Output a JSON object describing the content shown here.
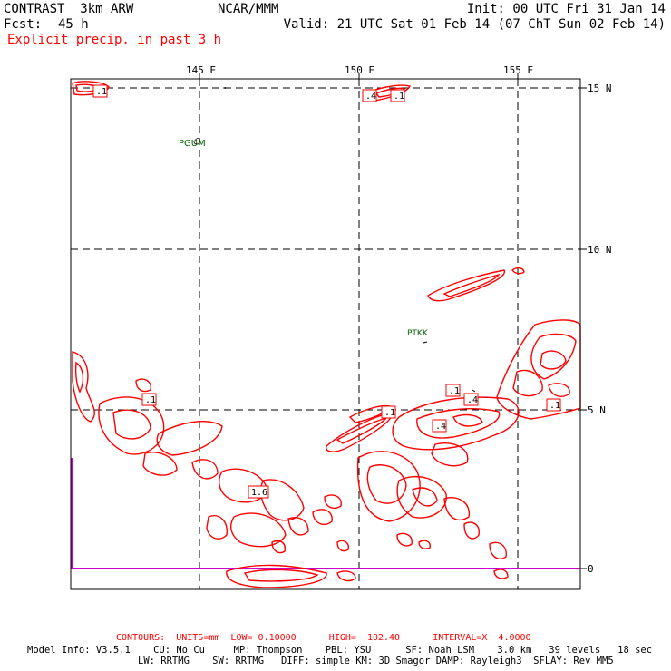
{
  "header": {
    "model": "CONTRAST  3km ARW",
    "org": "NCAR/MMM",
    "init": "Init: 00 UTC Fri 31 Jan 14",
    "fcst_label": "Fcst:",
    "fcst_value": "45 h",
    "valid": "Valid: 21 UTC Sat 01 Feb 14 (07 ChT Sun 02 Feb 14)",
    "field": "Explicit precip. in past 3 h"
  },
  "lon_labels": [
    "145 E",
    "150 E",
    "155 E"
  ],
  "lat_labels": [
    "15 N",
    "10 N",
    "5 N",
    "0"
  ],
  "stations": [
    "PGUM",
    "PTKK"
  ],
  "contour_labels": [
    ".1",
    ".4",
    ".1",
    ".1",
    ".1",
    ".4",
    ".1",
    ".4",
    ".1",
    "1.6"
  ],
  "footer": {
    "contours": "CONTOURS:  UNITS=mm  LOW= 0.10000      HIGH=  102.40      INTERVAL=X  4.0000",
    "model_info_1": "Model Info: V3.5.1    CU: No Cu     MP: Thompson    PBL: YSU      SF: Noah LSM    3.0 km   39 levels   18 sec",
    "model_info_2": "LW: RRTMG    SW: RRTMG   DIFF: simple KM: 3D Smagor DAMP: Rayleigh3  SFLAY: Rev MM5"
  },
  "colors": {
    "contour": "#ff0000",
    "station": "#006400",
    "domain_edge": "#cc00cc",
    "grid": "#000000",
    "field_title": "#ff0000"
  }
}
